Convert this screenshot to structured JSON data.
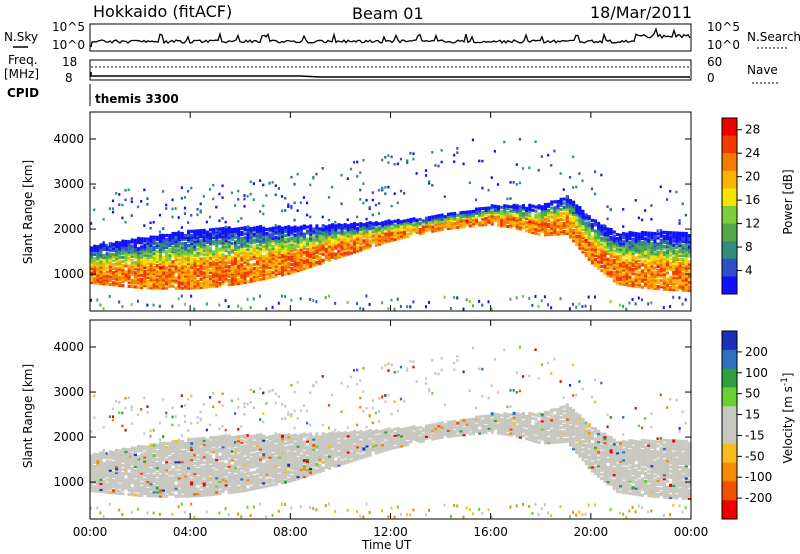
{
  "header": {
    "station": "Hokkaido (fitACF)",
    "beam": "Beam 01",
    "date": "18/Mar/2011"
  },
  "noise_panel": {
    "left_label": "N.Sky",
    "right_label": "N.Search",
    "left_ticks": [
      "10^5",
      "10^0"
    ],
    "right_ticks": [
      "10^5",
      "10^0"
    ]
  },
  "freq_panel": {
    "left_label_line1": "Freq.",
    "left_label_line2": "[MHz]",
    "left_ticks": [
      "18",
      "8"
    ],
    "right_label": "Nave",
    "right_ticks": [
      "60",
      "0"
    ]
  },
  "cpid_panel": {
    "label": "CPID",
    "program": "themis 3300"
  },
  "colors": {
    "power_scale": [
      "#1010ff",
      "#3050c8",
      "#2f8f7c",
      "#52a84a",
      "#7ccc3c",
      "#f5e400",
      "#f8b400",
      "#f47a00",
      "#f23a00",
      "#ee0000"
    ],
    "velocity_scale": [
      "#ee0000",
      "#f25000",
      "#f58a00",
      "#f8bc20",
      "#c8c8c0",
      "#c8c8c0",
      "#68d030",
      "#2fa040",
      "#2f6fc0",
      "#1a30b8"
    ],
    "ground_scatter": "#c8c8c0"
  },
  "chart_data": [
    {
      "type": "heatmap",
      "name": "Power",
      "xlabel": "",
      "ylabel": "Slant Range [km]",
      "x_ticks": [
        "00:00",
        "04:00",
        "08:00",
        "12:00",
        "16:00",
        "20:00",
        "00:00"
      ],
      "y_ticks": [
        1000,
        2000,
        3000,
        4000
      ],
      "xlim_hours": [
        0,
        24
      ],
      "ylim_km": [
        180,
        4600
      ],
      "colorbar_label": "Power [dB]",
      "colorbar_ticks": [
        4,
        8,
        12,
        16,
        20,
        24,
        28
      ],
      "colorbar_range": [
        0,
        30
      ],
      "band_centers_km": [
        [
          0,
          1150
        ],
        [
          2,
          1150
        ],
        [
          4,
          1200
        ],
        [
          6,
          1300
        ],
        [
          8,
          1450
        ],
        [
          10,
          1700
        ],
        [
          12,
          1950
        ],
        [
          14,
          2150
        ],
        [
          16,
          2300
        ],
        [
          17,
          2250
        ],
        [
          18,
          2150
        ],
        [
          19,
          2250
        ],
        [
          20,
          1650
        ],
        [
          21,
          1250
        ],
        [
          22,
          1200
        ],
        [
          24,
          1150
        ]
      ]
    },
    {
      "type": "heatmap",
      "name": "Velocity",
      "xlabel": "Time UT",
      "ylabel": "Slant Range [km]",
      "x_ticks": [
        "00:00",
        "04:00",
        "08:00",
        "12:00",
        "16:00",
        "20:00",
        "00:00"
      ],
      "y_ticks": [
        1000,
        2000,
        3000,
        4000
      ],
      "xlim_hours": [
        0,
        24
      ],
      "ylim_km": [
        180,
        4600
      ],
      "colorbar_label": "Velocity [m s^-1]",
      "colorbar_ticks": [
        200,
        100,
        50,
        15,
        -15,
        -50,
        -100,
        -200
      ],
      "colorbar_range": [
        -250,
        250
      ]
    }
  ]
}
